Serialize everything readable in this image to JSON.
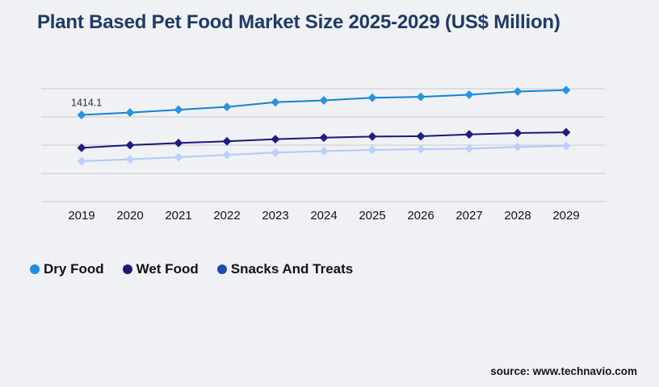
{
  "title": "Plant Based Pet Food Market Size 2025-2029 (US$ Million)",
  "source": "source: www.technavio.com",
  "colors": {
    "background": "#f0f1f4",
    "title": "#1e3a66",
    "gridline": "#c8c9cd",
    "axis_label": "#111318",
    "annotation_text": "#2e2e33"
  },
  "chart_data": {
    "type": "line",
    "title": "Plant Based Pet Food Market Size 2025-2029 (US$ Million)",
    "x": [
      2019,
      2020,
      2021,
      2022,
      2023,
      2024,
      2025,
      2026,
      2027,
      2028,
      2029
    ],
    "series": [
      {
        "name": "Dry Food",
        "color": "#1282d3",
        "marker_color": "#2694e0",
        "legend_color": "#1f8ddb",
        "values": [
          1414.1,
          1431,
          1451,
          1471,
          1504,
          1517,
          1536,
          1542,
          1557,
          1580,
          1590
        ]
      },
      {
        "name": "Wet Food",
        "color": "#18187b",
        "marker_color": "#1d1d84",
        "legend_color": "#1b1b7a",
        "values": [
          1181,
          1200,
          1215,
          1227,
          1242,
          1253,
          1261,
          1263,
          1276,
          1286,
          1291
        ]
      },
      {
        "name": "Snacks And Treats",
        "color": "#b2c8f5",
        "marker_color": "#b9d0fb",
        "legend_color": "#1e4bad",
        "values": [
          1086,
          1099,
          1114,
          1131,
          1147,
          1158,
          1166,
          1171,
          1175,
          1187,
          1194
        ]
      }
    ],
    "annotation": {
      "series": "Dry Food",
      "x": 2019,
      "label": "1414.1"
    },
    "ylim": [
      800,
      1600
    ],
    "gridlines": [
      800,
      1000,
      1200,
      1400,
      1600
    ],
    "xlabel": "",
    "ylabel": "",
    "grid": true,
    "legend_position": "bottom-left",
    "marker": "diamond"
  }
}
